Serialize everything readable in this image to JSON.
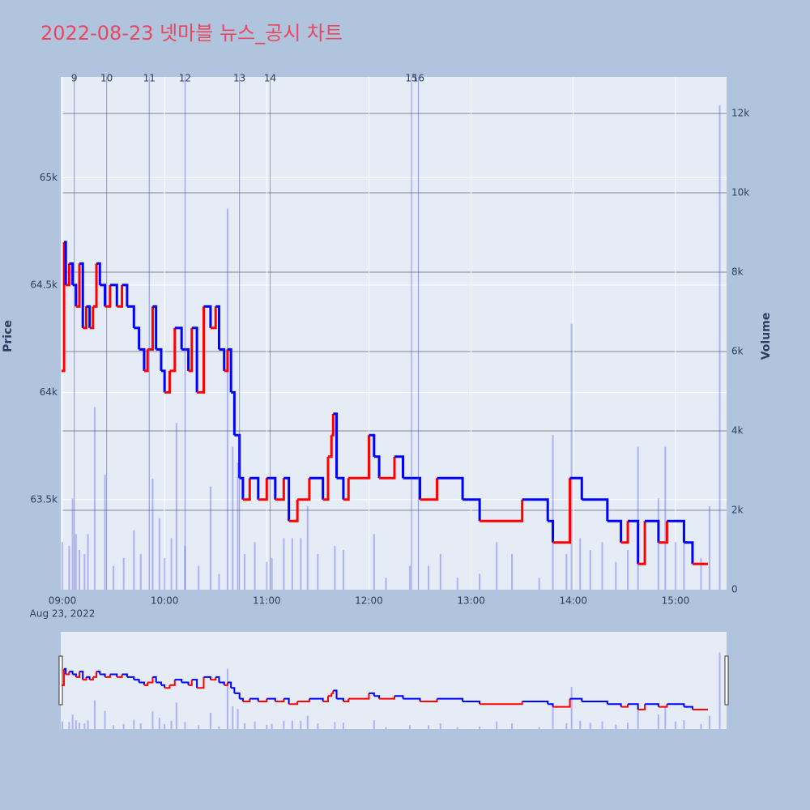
{
  "chart_data": {
    "type": "stock",
    "title": "2022-08-23 넷마블 뉴스_공시 차트",
    "ylabel": "Price",
    "y2label": "Volume",
    "xlim": [
      "09:00",
      "15:30"
    ],
    "xticks": [
      "09:00",
      "10:00",
      "11:00",
      "12:00",
      "13:00",
      "14:00",
      "15:00"
    ],
    "x_date_label": "Aug 23, 2022",
    "ylim": [
      63080,
      65470
    ],
    "yticks": [
      {
        "value": 63500,
        "label": "63.5k"
      },
      {
        "value": 64000,
        "label": "64k"
      },
      {
        "value": 64500,
        "label": "64.5k"
      },
      {
        "value": 65000,
        "label": "65k"
      }
    ],
    "y2lim": [
      0,
      12920
    ],
    "y2ticks": [
      0,
      {
        "value": 2000,
        "label": "2k"
      },
      {
        "value": 4000,
        "label": "4k"
      },
      {
        "value": 6000,
        "label": "6k"
      },
      {
        "value": 8000,
        "label": "8k"
      },
      {
        "value": 10000,
        "label": "10k"
      },
      {
        "value": 12000,
        "label": "12k"
      }
    ],
    "grid": true,
    "series": [
      {
        "up_color": "#ff0000",
        "down_color": "#0000ff",
        "x": [
          "09:00",
          "09:01",
          "09:02",
          "09:04",
          "09:06",
          "09:08",
          "09:10",
          "09:12",
          "09:14",
          "09:16",
          "09:18",
          "09:20",
          "09:22",
          "09:25",
          "09:28",
          "09:32",
          "09:35",
          "09:38",
          "09:42",
          "09:45",
          "09:48",
          "09:50",
          "09:53",
          "09:55",
          "09:58",
          "10:00",
          "10:03",
          "10:06",
          "10:10",
          "10:14",
          "10:16",
          "10:19",
          "10:23",
          "10:27",
          "10:30",
          "10:32",
          "10:35",
          "10:37",
          "10:39",
          "10:41",
          "10:44",
          "10:46",
          "10:50",
          "10:55",
          "11:00",
          "11:05",
          "11:10",
          "11:13",
          "11:18",
          "11:25",
          "11:33",
          "11:36",
          "11:38",
          "11:39",
          "11:41",
          "11:45",
          "11:48",
          "12:00",
          "12:03",
          "12:06",
          "12:15",
          "12:20",
          "12:30",
          "12:40",
          "12:55",
          "13:05",
          "13:30",
          "13:45",
          "13:48",
          "13:58",
          "14:05",
          "14:20",
          "14:28",
          "14:32",
          "14:38",
          "14:42",
          "14:50",
          "14:55",
          "15:05",
          "15:10",
          "15:19"
        ],
        "values": [
          64100,
          64700,
          64500,
          64600,
          64500,
          64400,
          64600,
          64300,
          64400,
          64300,
          64400,
          64600,
          64500,
          64400,
          64500,
          64400,
          64500,
          64400,
          64300,
          64200,
          64100,
          64200,
          64400,
          64200,
          64100,
          64000,
          64100,
          64300,
          64200,
          64100,
          64300,
          64000,
          64400,
          64300,
          64400,
          64200,
          64100,
          64200,
          64000,
          63800,
          63600,
          63500,
          63600,
          63500,
          63600,
          63500,
          63600,
          63400,
          63500,
          63600,
          63500,
          63700,
          63800,
          63900,
          63600,
          63500,
          63600,
          63800,
          63700,
          63600,
          63700,
          63600,
          63500,
          63600,
          63500,
          63400,
          63500,
          63400,
          63300,
          63600,
          63500,
          63400,
          63300,
          63400,
          63200,
          63400,
          63300,
          63400,
          63300,
          63200,
          63200
        ]
      },
      {
        "axis": "y2",
        "color": "rgba(70,70,255,0.35)",
        "x": [
          "09:00",
          "09:04",
          "09:06",
          "09:08",
          "09:10",
          "09:13",
          "09:15",
          "09:19",
          "09:25",
          "09:30",
          "09:36",
          "09:42",
          "09:46",
          "09:53",
          "09:57",
          "10:00",
          "10:04",
          "10:07",
          "10:12",
          "10:20",
          "10:27",
          "10:32",
          "10:37",
          "10:40",
          "10:43",
          "10:47",
          "10:53",
          "11:00",
          "11:03",
          "11:10",
          "11:15",
          "11:20",
          "11:24",
          "11:30",
          "11:40",
          "11:45",
          "12:03",
          "12:10",
          "12:24",
          "12:35",
          "12:42",
          "12:52",
          "13:05",
          "13:15",
          "13:24",
          "13:40",
          "13:48",
          "13:56",
          "13:59",
          "14:04",
          "14:10",
          "14:17",
          "14:25",
          "14:32",
          "14:38",
          "14:50",
          "14:54",
          "15:00",
          "15:05",
          "15:15",
          "15:20",
          "15:26"
        ],
        "values": [
          1200,
          1100,
          2300,
          1400,
          1000,
          900,
          1400,
          4600,
          2900,
          600,
          800,
          1500,
          900,
          2800,
          1800,
          800,
          1300,
          4200,
          1100,
          600,
          2600,
          400,
          9600,
          3600,
          3200,
          900,
          1200,
          700,
          800,
          1300,
          1300,
          1300,
          2100,
          900,
          1100,
          1000,
          1400,
          300,
          600,
          600,
          900,
          300,
          400,
          1200,
          900,
          300,
          3900,
          900,
          6700,
          1300,
          1000,
          1200,
          700,
          1000,
          3600,
          2300,
          3600,
          1200,
          1400,
          800,
          2100,
          12200
        ]
      }
    ],
    "news": {
      "color": "rgba(70,70,230,0.55)",
      "x": [
        "09:07",
        "09:26",
        "09:51",
        "10:12",
        "10:44",
        "11:02",
        "12:25",
        "12:29"
      ],
      "labels": [
        "9",
        "10",
        "11",
        "12",
        "13",
        "14",
        "15",
        "16"
      ]
    }
  }
}
